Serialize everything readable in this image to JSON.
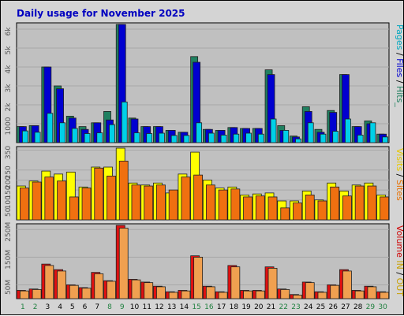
{
  "chart_data": {
    "type": "bar",
    "title": "Daily usage for November 2025",
    "categories": [
      "1",
      "2",
      "3",
      "4",
      "5",
      "6",
      "7",
      "8",
      "9",
      "10",
      "11",
      "12",
      "13",
      "14",
      "15",
      "16",
      "17",
      "18",
      "19",
      "20",
      "21",
      "22",
      "23",
      "24",
      "25",
      "26",
      "27",
      "28",
      "29",
      "30"
    ],
    "weekend_days": [
      "1",
      "2",
      "8",
      "9",
      "15",
      "16",
      "22",
      "23",
      "29",
      "30"
    ],
    "panels": [
      {
        "name": "pages-files-hits",
        "side_label": [
          {
            "text": "Pages",
            "color": "#00a8c0"
          },
          {
            "text": " / ",
            "color": "#000000"
          },
          {
            "text": "Files",
            "color": "#0000d0"
          },
          {
            "text": " / ",
            "color": "#000000"
          },
          {
            "text": "Hits",
            "color": "#208060"
          },
          {
            "text": "_",
            "color": "#208060"
          }
        ],
        "ylim": [
          0,
          6250
        ],
        "ticks": [
          {
            "label": "1000",
            "value": 1000
          },
          {
            "label": "2k",
            "value": 2000
          },
          {
            "label": "3k",
            "value": 3000
          },
          {
            "label": "4k",
            "value": 4000
          },
          {
            "label": "5k",
            "value": 5000
          },
          {
            "label": "6k",
            "value": 6000
          }
        ],
        "series": [
          {
            "name": "Hits",
            "color": "#208060",
            "values": [
              850,
              900,
              4000,
              3000,
              1400,
              850,
              1050,
              1650,
              6250,
              1300,
              850,
              850,
              650,
              550,
              4550,
              700,
              650,
              800,
              750,
              750,
              3850,
              900,
              350,
              1900,
              700,
              1700,
              3600,
              850,
              1150,
              450
            ]
          },
          {
            "name": "Files",
            "color": "#0000d0",
            "values": [
              850,
              900,
              4000,
              2850,
              1300,
              700,
              1050,
              1200,
              6250,
              1250,
              850,
              850,
              650,
              550,
              4250,
              700,
              650,
              800,
              750,
              750,
              3600,
              650,
              300,
              1650,
              550,
              1600,
              3600,
              850,
              1000,
              450
            ]
          },
          {
            "name": "Pages",
            "color": "#00d0e8",
            "values": [
              620,
              550,
              1550,
              1050,
              750,
              480,
              520,
              950,
              2150,
              520,
              480,
              500,
              380,
              380,
              1050,
              500,
              400,
              450,
              500,
              450,
              1250,
              650,
              200,
              1050,
              450,
              600,
              1250,
              400,
              1050,
              300
            ]
          }
        ]
      },
      {
        "name": "visits-sites",
        "side_label": [
          {
            "text": "Visits",
            "color": "#e8c800"
          },
          {
            "text": " / ",
            "color": "#000000"
          },
          {
            "text": "Sites",
            "color": "#e87000"
          }
        ],
        "ylim": [
          0,
          360
        ],
        "ticks": [
          {
            "label": "50",
            "value": 50
          },
          {
            "label": "100",
            "value": 100
          },
          {
            "label": "150",
            "value": 150
          },
          {
            "label": "200",
            "value": 200
          },
          {
            "label": "250",
            "value": 250
          },
          {
            "label": "350",
            "value": 350
          }
        ],
        "series": [
          {
            "name": "Visits",
            "color": "#ffff00",
            "values": [
              170,
              195,
              245,
              230,
              240,
              165,
              265,
              265,
              360,
              185,
              175,
              185,
              135,
              230,
              340,
              200,
              160,
              165,
              125,
              130,
              135,
              95,
              95,
              145,
              100,
              185,
              145,
              175,
              185,
              125
            ]
          },
          {
            "name": "Sites",
            "color": "#f07010",
            "values": [
              160,
              190,
              215,
              195,
              115,
              160,
              260,
              220,
              295,
              175,
              170,
              175,
              150,
              215,
              225,
              175,
              150,
              155,
              115,
              120,
              115,
              60,
              85,
              125,
              95,
              165,
              120,
              170,
              170,
              115
            ]
          }
        ]
      },
      {
        "name": "volume",
        "side_label": [
          {
            "text": "Volume",
            "color": "#d00000"
          },
          {
            "text": "  IN ",
            "color": "#c8a000"
          },
          {
            "text": "/ ",
            "color": "#000000"
          },
          {
            "text": "OUT",
            "color": "#c8a000"
          }
        ],
        "ylim": [
          0,
          265
        ],
        "ticks": [
          {
            "label": "50M",
            "value": 50
          },
          {
            "label": "150M",
            "value": 150
          },
          {
            "label": "250M",
            "value": 250
          }
        ],
        "series": [
          {
            "name": "Volume",
            "color": "#e01010",
            "values": [
              30,
              35,
              125,
              105,
              50,
              40,
              95,
              65,
              265,
              70,
              60,
              45,
              25,
              30,
              155,
              45,
              25,
              120,
              30,
              30,
              115,
              35,
              15,
              60,
              25,
              50,
              105,
              30,
              45,
              25
            ]
          },
          {
            "name": "OUT",
            "color": "#f0a050",
            "values": [
              28,
              33,
              120,
              100,
              48,
              38,
              90,
              63,
              255,
              68,
              58,
              43,
              23,
              28,
              150,
              43,
              23,
              115,
              28,
              28,
              110,
              33,
              13,
              58,
              23,
              48,
              100,
              28,
              43,
              23
            ]
          }
        ]
      }
    ]
  }
}
